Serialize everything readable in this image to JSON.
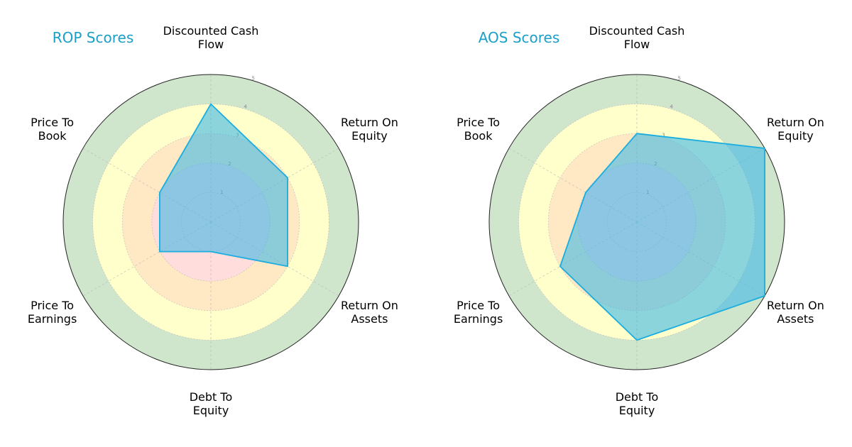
{
  "chart_data": [
    {
      "type": "radar",
      "title": "ROP Scores",
      "axes": [
        [
          "Discounted Cash",
          "Flow"
        ],
        [
          "Return On",
          "Equity"
        ],
        [
          "Return On",
          "Assets"
        ],
        [
          "Debt To",
          "Equity"
        ],
        [
          "Price To",
          "Earnings"
        ],
        [
          "Price To",
          "Book"
        ]
      ],
      "values": [
        4,
        3,
        3,
        1,
        2,
        2
      ],
      "rlim": [
        0,
        5
      ],
      "ticks": [
        "1",
        "2",
        "3",
        "4",
        "5"
      ],
      "grid": true
    },
    {
      "type": "radar",
      "title": "AOS Scores",
      "axes": [
        [
          "Discounted Cash",
          "Flow"
        ],
        [
          "Return On",
          "Equity"
        ],
        [
          "Return On",
          "Assets"
        ],
        [
          "Debt To",
          "Equity"
        ],
        [
          "Price To",
          "Earnings"
        ],
        [
          "Price To",
          "Book"
        ]
      ],
      "values": [
        3,
        5,
        5,
        4,
        3,
        2
      ],
      "rlim": [
        0,
        5
      ],
      "ticks": [
        "1",
        "2",
        "3",
        "4",
        "5"
      ],
      "grid": true
    }
  ],
  "colors": {
    "series_fill": "#40b8e6",
    "series_stroke": "#1aaee0",
    "band_outer": "#cfe5cc",
    "band_upper": "#ffffcc",
    "band_middle": "#ffe8c4",
    "band_inner": "#ffdddd",
    "title": "#1a9fc9"
  }
}
